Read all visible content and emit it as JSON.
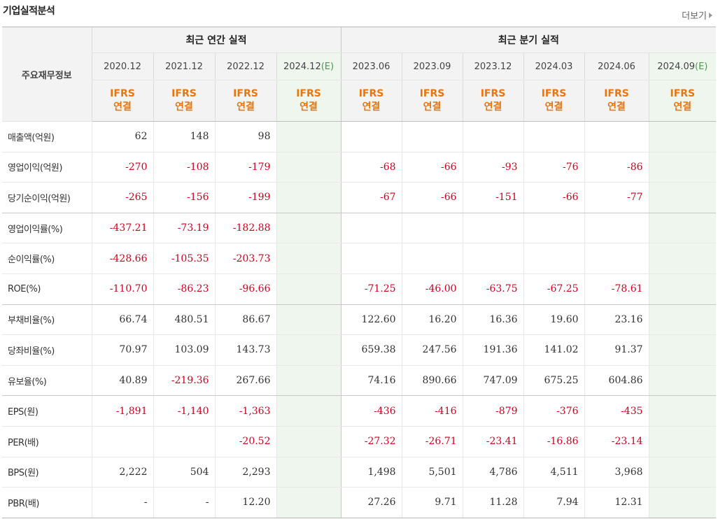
{
  "section_title": "기업실적분석",
  "more_label": "더보기",
  "row_header": "주요재무정보",
  "groups": {
    "annual": "최근 연간 실적",
    "quarterly": "최근 분기 실적"
  },
  "periods": [
    {
      "label": "2020.12",
      "est": false
    },
    {
      "label": "2021.12",
      "est": false
    },
    {
      "label": "2022.12",
      "est": false
    },
    {
      "label": "2024.12",
      "est": true
    },
    {
      "label": "2023.06",
      "est": false
    },
    {
      "label": "2023.09",
      "est": false
    },
    {
      "label": "2023.12",
      "est": false
    },
    {
      "label": "2024.03",
      "est": false
    },
    {
      "label": "2024.06",
      "est": false
    },
    {
      "label": "2024.09",
      "est": true
    }
  ],
  "est_mark": "(E)",
  "ifrs_label": "IFRS",
  "consolidated_label": "연결",
  "rows": [
    {
      "label": "매출액(억원)",
      "values": [
        "62",
        "148",
        "98",
        "",
        "",
        "",
        "",
        "",
        "",
        ""
      ]
    },
    {
      "label": "영업이익(억원)",
      "values": [
        "-270",
        "-108",
        "-179",
        "",
        "-68",
        "-66",
        "-93",
        "-76",
        "-86",
        ""
      ]
    },
    {
      "label": "당기순이익(억원)",
      "values": [
        "-265",
        "-156",
        "-199",
        "",
        "-67",
        "-66",
        "-151",
        "-66",
        "-77",
        ""
      ],
      "group_end": true
    },
    {
      "label": "영업이익률(%)",
      "values": [
        "-437.21",
        "-73.19",
        "-182.88",
        "",
        "",
        "",
        "",
        "",
        "",
        ""
      ]
    },
    {
      "label": "순이익률(%)",
      "values": [
        "-428.66",
        "-105.35",
        "-203.73",
        "",
        "",
        "",
        "",
        "",
        "",
        ""
      ]
    },
    {
      "label": "ROE(%)",
      "values": [
        "-110.70",
        "-86.23",
        "-96.66",
        "",
        "-71.25",
        "-46.00",
        "-63.75",
        "-67.25",
        "-78.61",
        ""
      ],
      "group_end": true
    },
    {
      "label": "부채비율(%)",
      "values": [
        "66.74",
        "480.51",
        "86.67",
        "",
        "122.60",
        "16.20",
        "16.36",
        "19.60",
        "23.16",
        ""
      ]
    },
    {
      "label": "당좌비율(%)",
      "values": [
        "70.97",
        "103.09",
        "143.73",
        "",
        "659.38",
        "247.56",
        "191.36",
        "141.02",
        "91.37",
        ""
      ]
    },
    {
      "label": "유보율(%)",
      "values": [
        "40.89",
        "-219.36",
        "267.66",
        "",
        "74.16",
        "890.66",
        "747.09",
        "675.25",
        "604.86",
        ""
      ],
      "group_end": true
    },
    {
      "label": "EPS(원)",
      "values": [
        "-1,891",
        "-1,140",
        "-1,363",
        "",
        "-436",
        "-416",
        "-879",
        "-376",
        "-435",
        ""
      ]
    },
    {
      "label": "PER(배)",
      "values": [
        "",
        "",
        "-20.52",
        "",
        "-27.32",
        "-26.71",
        "-23.41",
        "-16.86",
        "-23.14",
        ""
      ]
    },
    {
      "label": "BPS(원)",
      "values": [
        "2,222",
        "504",
        "2,293",
        "",
        "1,498",
        "5,501",
        "4,786",
        "4,511",
        "3,968",
        ""
      ]
    },
    {
      "label": "PBR(배)",
      "values": [
        "-",
        "-",
        "12.20",
        "",
        "27.26",
        "9.71",
        "11.28",
        "7.94",
        "12.31",
        ""
      ]
    }
  ],
  "colors": {
    "negative": "#d0021b",
    "ifrs": "#e8750e",
    "estimate_bg": "#eef6ee"
  }
}
